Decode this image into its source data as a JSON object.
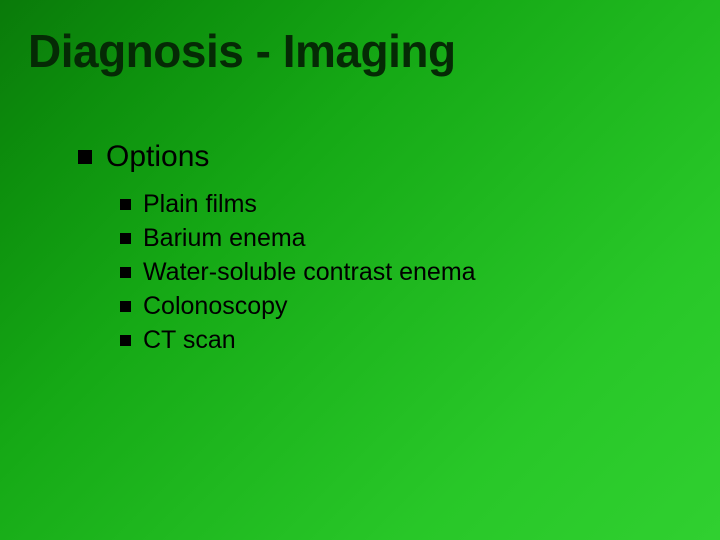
{
  "slide": {
    "title": "Diagnosis - Imaging",
    "title_color": "#052a05",
    "title_fontsize": 46,
    "background_gradient": {
      "direction": "135deg",
      "stops": [
        "#0a7a0a",
        "#0d8f0d",
        "#15a815",
        "#1fb81f",
        "#28c728",
        "#30d030"
      ]
    },
    "bullet": {
      "shape": "square",
      "color": "#000000",
      "level1_size": 14,
      "level2_size": 11
    },
    "body_text_color": "#000000",
    "level1_fontsize": 30,
    "level2_fontsize": 25,
    "content": {
      "level1_label": "Options",
      "items": [
        "Plain films",
        "Barium enema",
        "Water-soluble contrast enema",
        "Colonoscopy",
        "CT scan"
      ]
    }
  }
}
